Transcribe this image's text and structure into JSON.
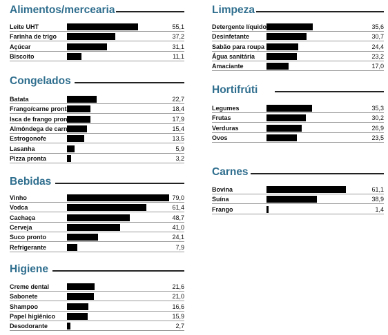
{
  "chart_data": [
    {
      "type": "bar",
      "orientation": "horizontal",
      "title": "Alimentos/mercearia",
      "categories": [
        "Leite UHT",
        "Farinha de trigo",
        "Açúcar",
        "Biscoito"
      ],
      "values": [
        55.1,
        37.2,
        31.1,
        11.1
      ],
      "value_labels": [
        "55,1",
        "37,2",
        "31,1",
        "11,1"
      ],
      "xlim": [
        0,
        79.0
      ]
    },
    {
      "type": "bar",
      "orientation": "horizontal",
      "title": "Congelados",
      "categories": [
        "Batata",
        "Frango/carne prontos",
        "Isca de frango pronta",
        "Almôndega de carne",
        "Estrogonofe",
        "Lasanha",
        "Pizza pronta"
      ],
      "values": [
        22.7,
        18.4,
        17.9,
        15.4,
        13.5,
        5.9,
        3.2
      ],
      "value_labels": [
        "22,7",
        "18,4",
        "17,9",
        "15,4",
        "13,5",
        "5,9",
        "3,2"
      ],
      "xlim": [
        0,
        79.0
      ]
    },
    {
      "type": "bar",
      "orientation": "horizontal",
      "title": "Bebidas",
      "categories": [
        "Vinho",
        "Vodca",
        "Cachaça",
        "Cerveja",
        "Suco pronto",
        "Refrigerante"
      ],
      "values": [
        79.0,
        61.4,
        48.7,
        41.0,
        24.1,
        7.9
      ],
      "value_labels": [
        "79,0",
        "61,4",
        "48,7",
        "41,0",
        "24,1",
        "7,9"
      ],
      "xlim": [
        0,
        79.0
      ]
    },
    {
      "type": "bar",
      "orientation": "horizontal",
      "title": "Higiene",
      "categories": [
        "Creme dental",
        "Sabonete",
        "Shampoo",
        "Papel higiênico",
        "Desodorante"
      ],
      "values": [
        21.6,
        21.0,
        16.6,
        15.9,
        2.7
      ],
      "value_labels": [
        "21,6",
        "21,0",
        "16,6",
        "15,9",
        "2,7"
      ],
      "xlim": [
        0,
        79.0
      ]
    },
    {
      "type": "bar",
      "orientation": "horizontal",
      "title": "Limpeza",
      "categories": [
        "Detergente líquido",
        "Desinfetante",
        "Sabão para roupa",
        "Água sanitária",
        "Amaciante"
      ],
      "values": [
        35.6,
        30.7,
        24.4,
        23.2,
        17.0
      ],
      "value_labels": [
        "35,6",
        "30,7",
        "24,4",
        "23,2",
        "17,0"
      ],
      "xlim": [
        0,
        61.1
      ]
    },
    {
      "type": "bar",
      "orientation": "horizontal",
      "title": "Hortifrúti",
      "categories": [
        "Legumes",
        "Frutas",
        "Verduras",
        "Ovos"
      ],
      "values": [
        35.3,
        30.2,
        26.9,
        23.5
      ],
      "value_labels": [
        "35,3",
        "30,2",
        "26,9",
        "23,5"
      ],
      "xlim": [
        0,
        61.1
      ]
    },
    {
      "type": "bar",
      "orientation": "horizontal",
      "title": "Carnes",
      "categories": [
        "Bovina",
        "Suína",
        "Frango"
      ],
      "values": [
        61.1,
        38.9,
        1.4
      ],
      "value_labels": [
        "61,1",
        "38,9",
        "1,4"
      ],
      "xlim": [
        0,
        61.1
      ]
    }
  ],
  "colors": {
    "title": "#2f6e8e",
    "bar": "#000000",
    "rule": "#999999",
    "title_rule": "#222222"
  }
}
